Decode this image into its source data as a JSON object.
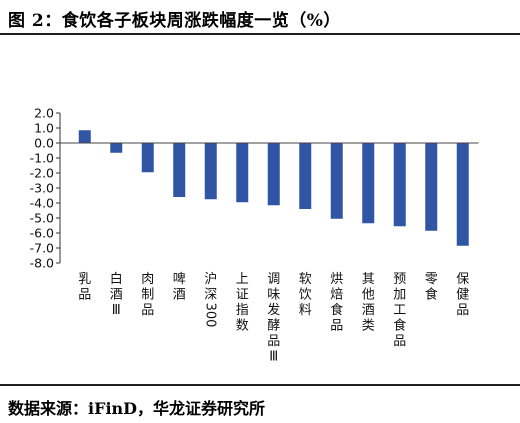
{
  "header": {
    "title": "图 2：食饮各子板块周涨跌幅度一览（%）"
  },
  "footer": {
    "source": "数据来源：iFinD，华龙证券研究所"
  },
  "chart_data": {
    "type": "bar",
    "title": "图 2：食饮各子板块周涨跌幅度一览（%）",
    "xlabel": "",
    "ylabel": "",
    "ylim": [
      -8.0,
      2.0
    ],
    "ytick_step": 1.0,
    "grid": false,
    "legend": "none",
    "bar_color": "#2f55a4",
    "categories": [
      "乳品",
      "白酒Ⅲ",
      "肉制品",
      "啤酒",
      "沪深300",
      "上证指数",
      "调味发酵品Ⅲ",
      "软饮料",
      "烘焙食品",
      "其他酒类",
      "预加工食品",
      "零食",
      "保健品"
    ],
    "values": [
      0.85,
      -0.65,
      -1.95,
      -3.6,
      -3.75,
      -3.95,
      -4.15,
      -4.4,
      -5.05,
      -5.35,
      -5.55,
      -5.85,
      -6.85
    ]
  }
}
